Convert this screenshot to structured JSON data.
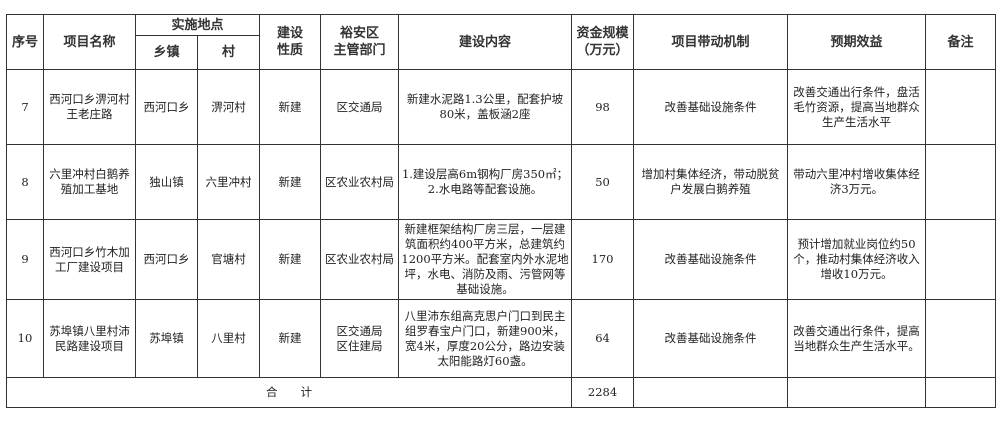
{
  "headers": {
    "seq": "序号",
    "name": "项目名称",
    "location": "实施地点",
    "town": "乡镇",
    "village": "村",
    "nature": "建设\n性质",
    "department": "裕安区\n主管部门",
    "content": "建设内容",
    "funding": "资金规模\n（万元）",
    "mechanism": "项目带动机制",
    "benefit": "预期效益",
    "remark": "备注"
  },
  "rows": [
    {
      "seq": "7",
      "name": "西河口乡淠河村王老庄路",
      "town": "西河口乡",
      "village": "淠河村",
      "nature": "新建",
      "department": "区交通局",
      "content": "新建水泥路1.3公里，配套护坡80米，盖板涵2座",
      "funding": "98",
      "mechanism": "改善基础设施条件",
      "benefit": "改善交通出行条件，盘活毛竹资源，提高当地群众生产生活水平",
      "remark": ""
    },
    {
      "seq": "8",
      "name": "六里冲村白鹅养殖加工基地",
      "town": "独山镇",
      "village": "六里冲村",
      "nature": "新建",
      "department": "区农业农村局",
      "content": "1.建设层高6m钢构厂房350㎡；\n2.水电路等配套设施。",
      "funding": "50",
      "mechanism": "增加村集体经济，带动脱贫户发展白鹅养殖",
      "benefit": "带动六里冲村增收集体经济3万元。",
      "remark": ""
    },
    {
      "seq": "9",
      "name": "西河口乡竹木加工厂建设项目",
      "town": "西河口乡",
      "village": "官塘村",
      "nature": "新建",
      "department": "区农业农村局",
      "content": "新建框架结构厂房三层，一层建筑面积约400平方米，总建筑约1200平方米。配套室内外水泥地坪，水电、消防及雨、污管网等基础设施。",
      "funding": "170",
      "mechanism": "改善基础设施条件",
      "benefit": "预计增加就业岗位约50个，推动村集体经济收入增收10万元。",
      "remark": ""
    },
    {
      "seq": "10",
      "name": "苏埠镇八里村沛民路建设项目",
      "town": "苏埠镇",
      "village": "八里村",
      "nature": "新建",
      "department": "区交通局\n区住建局",
      "content": "八里沛东组高克思户门口到民主组罗春宝户门口，新建900米，宽4米，厚度20公分，路边安装太阳能路灯60盏。",
      "funding": "64",
      "mechanism": "改善基础设施条件",
      "benefit": "改善交通出行条件，提高当地群众生产生活水平。",
      "remark": ""
    }
  ],
  "total": {
    "label": "合　　计",
    "funding": "2284"
  }
}
